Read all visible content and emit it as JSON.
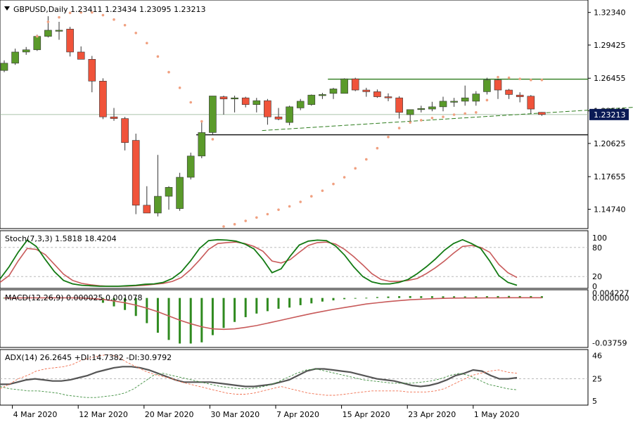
{
  "colors": {
    "bull": "#5a9a2a",
    "bear": "#f0533a",
    "sar": "#f0a080",
    "green_line": "#2e7d1e",
    "black_line": "#1a1a1a",
    "stoch_k": "#137a13",
    "stoch_d": "#c85a5a",
    "macd_hist": "#2f8a1f",
    "macd_signal": "#c85a5a",
    "adx": "#555555",
    "pdi": "#3f8f3f",
    "mdi": "#f07050",
    "current_bg": "#0a1a55",
    "current_fg": "#ffffff"
  },
  "chart_data": [
    {
      "name": "price",
      "type": "candlestick",
      "title": "GBPUSD,Daily  1.23411 1.23434 1.23095 1.23213",
      "title_menu_icon": "triangle-down-icon",
      "ylim": [
        1.132,
        1.332
      ],
      "yticks": [
        "1.32340",
        "1.29425",
        "1.26455",
        "1.23540",
        "1.20625",
        "1.17655",
        "1.14740"
      ],
      "current_price": "1.23213",
      "ohlc": [
        {
          "o": 1.2715,
          "h": 1.2805,
          "l": 1.27,
          "c": 1.278
        },
        {
          "o": 1.278,
          "h": 1.291,
          "l": 1.2765,
          "c": 1.288
        },
        {
          "o": 1.288,
          "h": 1.2925,
          "l": 1.2855,
          "c": 1.29
        },
        {
          "o": 1.29,
          "h": 1.3035,
          "l": 1.289,
          "c": 1.302
        },
        {
          "o": 1.302,
          "h": 1.32,
          "l": 1.301,
          "c": 1.3075
        },
        {
          "o": 1.3075,
          "h": 1.315,
          "l": 1.299,
          "c": 1.3075
        },
        {
          "o": 1.3085,
          "h": 1.3105,
          "l": 1.284,
          "c": 1.288
        },
        {
          "o": 1.288,
          "h": 1.293,
          "l": 1.282,
          "c": 1.2815
        },
        {
          "o": 1.2815,
          "h": 1.2845,
          "l": 1.252,
          "c": 1.262
        },
        {
          "o": 1.262,
          "h": 1.2645,
          "l": 1.228,
          "c": 1.23
        },
        {
          "o": 1.23,
          "h": 1.238,
          "l": 1.2265,
          "c": 1.2285
        },
        {
          "o": 1.2285,
          "h": 1.23,
          "l": 1.2,
          "c": 1.207
        },
        {
          "o": 1.209,
          "h": 1.215,
          "l": 1.143,
          "c": 1.151
        },
        {
          "o": 1.151,
          "h": 1.168,
          "l": 1.144,
          "c": 1.144
        },
        {
          "o": 1.144,
          "h": 1.196,
          "l": 1.141,
          "c": 1.159
        },
        {
          "o": 1.159,
          "h": 1.168,
          "l": 1.147,
          "c": 1.167
        },
        {
          "o": 1.148,
          "h": 1.18,
          "l": 1.146,
          "c": 1.176
        },
        {
          "o": 1.176,
          "h": 1.198,
          "l": 1.174,
          "c": 1.195
        },
        {
          "o": 1.195,
          "h": 1.225,
          "l": 1.193,
          "c": 1.216
        },
        {
          "o": 1.216,
          "h": 1.2487,
          "l": 1.214,
          "c": 1.2487
        },
        {
          "o": 1.248,
          "h": 1.249,
          "l": 1.232,
          "c": 1.246
        },
        {
          "o": 1.246,
          "h": 1.249,
          "l": 1.234,
          "c": 1.247
        },
        {
          "o": 1.247,
          "h": 1.248,
          "l": 1.2385,
          "c": 1.241
        },
        {
          "o": 1.241,
          "h": 1.247,
          "l": 1.234,
          "c": 1.2445
        },
        {
          "o": 1.2445,
          "h": 1.246,
          "l": 1.223,
          "c": 1.23
        },
        {
          "o": 1.23,
          "h": 1.238,
          "l": 1.227,
          "c": 1.228
        },
        {
          "o": 1.225,
          "h": 1.24,
          "l": 1.2225,
          "c": 1.239
        },
        {
          "o": 1.238,
          "h": 1.246,
          "l": 1.236,
          "c": 1.244
        },
        {
          "o": 1.241,
          "h": 1.25,
          "l": 1.24,
          "c": 1.2495
        },
        {
          "o": 1.249,
          "h": 1.2515,
          "l": 1.246,
          "c": 1.25
        },
        {
          "o": 1.251,
          "h": 1.256,
          "l": 1.246,
          "c": 1.255
        },
        {
          "o": 1.251,
          "h": 1.2645,
          "l": 1.251,
          "c": 1.264
        },
        {
          "o": 1.264,
          "h": 1.265,
          "l": 1.253,
          "c": 1.254
        },
        {
          "o": 1.254,
          "h": 1.256,
          "l": 1.248,
          "c": 1.2525
        },
        {
          "o": 1.2525,
          "h": 1.2545,
          "l": 1.247,
          "c": 1.248
        },
        {
          "o": 1.248,
          "h": 1.251,
          "l": 1.244,
          "c": 1.247
        },
        {
          "o": 1.247,
          "h": 1.2485,
          "l": 1.2285,
          "c": 1.234
        },
        {
          "o": 1.232,
          "h": 1.236,
          "l": 1.226,
          "c": 1.2365
        },
        {
          "o": 1.2365,
          "h": 1.24,
          "l": 1.234,
          "c": 1.2375
        },
        {
          "o": 1.237,
          "h": 1.2435,
          "l": 1.235,
          "c": 1.239
        },
        {
          "o": 1.239,
          "h": 1.248,
          "l": 1.235,
          "c": 1.244
        },
        {
          "o": 1.244,
          "h": 1.247,
          "l": 1.239,
          "c": 1.244
        },
        {
          "o": 1.244,
          "h": 1.258,
          "l": 1.24,
          "c": 1.247
        },
        {
          "o": 1.244,
          "h": 1.253,
          "l": 1.24,
          "c": 1.2505
        },
        {
          "o": 1.2525,
          "h": 1.265,
          "l": 1.25,
          "c": 1.263
        },
        {
          "o": 1.263,
          "h": 1.264,
          "l": 1.246,
          "c": 1.254
        },
        {
          "o": 1.254,
          "h": 1.255,
          "l": 1.246,
          "c": 1.25
        },
        {
          "o": 1.2495,
          "h": 1.252,
          "l": 1.243,
          "c": 1.248
        },
        {
          "o": 1.2485,
          "h": 1.2495,
          "l": 1.233,
          "c": 1.237
        },
        {
          "o": 1.2341,
          "h": 1.2343,
          "l": 1.2309,
          "c": 1.2321
        }
      ],
      "parabolic_sar": [
        [
          3,
          1.302
        ],
        [
          4,
          1.315
        ],
        [
          5,
          1.319
        ],
        [
          6,
          1.323
        ],
        [
          7,
          1.3234
        ],
        [
          8,
          1.3234
        ],
        [
          9,
          1.321
        ],
        [
          10,
          1.317
        ],
        [
          11,
          1.312
        ],
        [
          12,
          1.305
        ],
        [
          13,
          1.296
        ],
        [
          14,
          1.284
        ],
        [
          15,
          1.27
        ],
        [
          16,
          1.256
        ],
        [
          17,
          1.243
        ],
        [
          18,
          1.226
        ],
        [
          19,
          1.21
        ],
        [
          20,
          1.132
        ],
        [
          21,
          1.134
        ],
        [
          22,
          1.137
        ],
        [
          23,
          1.14
        ],
        [
          24,
          1.143
        ],
        [
          25,
          1.147
        ],
        [
          26,
          1.15
        ],
        [
          27,
          1.154
        ],
        [
          28,
          1.159
        ],
        [
          29,
          1.164
        ],
        [
          30,
          1.17
        ],
        [
          31,
          1.176
        ],
        [
          32,
          1.184
        ],
        [
          33,
          1.192
        ],
        [
          34,
          1.202
        ],
        [
          35,
          1.212
        ],
        [
          36,
          1.22
        ],
        [
          37,
          1.225
        ],
        [
          38,
          1.227
        ],
        [
          39,
          1.229
        ],
        [
          40,
          1.23
        ],
        [
          41,
          1.232
        ],
        [
          42,
          1.233
        ],
        [
          43,
          1.234
        ],
        [
          44,
          1.245
        ],
        [
          45,
          1.2655
        ],
        [
          46,
          1.265
        ],
        [
          47,
          1.264
        ],
        [
          48,
          1.263
        ],
        [
          49,
          1.263
        ]
      ],
      "resistance_level": 1.2637,
      "support_level": 1.214,
      "trendline": {
        "x1": 23.5,
        "y1": 1.2178,
        "x2": 60,
        "y2": 1.2405
      }
    },
    {
      "name": "stochastic",
      "type": "line",
      "title": "Stoch(7,3,3) 1.5818 18.4204",
      "ylim": [
        0,
        100
      ],
      "yticks": [
        "100",
        "80",
        "20",
        "0"
      ],
      "series": [
        {
          "name": "main",
          "values": [
            15,
            40,
            70,
            95,
            82,
            55,
            30,
            12,
            5,
            2,
            1,
            0,
            0,
            0,
            1,
            2,
            4,
            5,
            8,
            16,
            30,
            52,
            78,
            94,
            96,
            95,
            93,
            87,
            77,
            55,
            28,
            36,
            62,
            85,
            93,
            95,
            94,
            83,
            64,
            40,
            20,
            9,
            5,
            5,
            8,
            14,
            26,
            40,
            56,
            74,
            88,
            96,
            88,
            78,
            52,
            22,
            8,
            2
          ]
        },
        {
          "name": "signal",
          "values": [
            8,
            22,
            52,
            78,
            76,
            65,
            45,
            25,
            12,
            6,
            3,
            1,
            0,
            0,
            0,
            1,
            2,
            4,
            6,
            10,
            18,
            34,
            54,
            76,
            88,
            90,
            91,
            88,
            82,
            72,
            52,
            48,
            55,
            70,
            84,
            90,
            91,
            87,
            76,
            61,
            44,
            26,
            14,
            10,
            10,
            12,
            16,
            26,
            38,
            52,
            68,
            82,
            84,
            80,
            70,
            45,
            28,
            18
          ]
        }
      ]
    },
    {
      "name": "macd",
      "type": "bar",
      "title": "MACD(12,26,9) 0.000025 0.001078",
      "ylim": [
        -0.0395,
        0.0045
      ],
      "yticks": [
        "0.004227",
        "0.000000",
        "-0.03759"
      ],
      "histogram": [
        0.0002,
        0.0002,
        0.0002,
        0.0003,
        0.0002,
        0.0003,
        0.0003,
        0.0001,
        -0.001,
        -0.004,
        -0.007,
        -0.01,
        -0.015,
        -0.021,
        -0.029,
        -0.035,
        -0.038,
        -0.038,
        -0.037,
        -0.031,
        -0.025,
        -0.02,
        -0.016,
        -0.013,
        -0.011,
        -0.009,
        -0.008,
        -0.006,
        -0.0045,
        -0.003,
        -0.002,
        -0.001,
        -0.0005,
        0.0002,
        0.0008,
        0.0012,
        0.0015,
        0.0016,
        0.0015,
        0.0015,
        0.0014,
        0.0014,
        0.0013,
        0.0014,
        0.0015,
        0.0016,
        0.0017,
        0.0016,
        0.0016,
        0.0015
      ],
      "signal": [
        0.0,
        0.0,
        0.0001,
        0.0001,
        0.0001,
        0.0001,
        0.0001,
        0.0,
        -0.0004,
        -0.0012,
        -0.0025,
        -0.004,
        -0.006,
        -0.0085,
        -0.0115,
        -0.015,
        -0.0185,
        -0.0215,
        -0.024,
        -0.0258,
        -0.0262,
        -0.0258,
        -0.0245,
        -0.023,
        -0.021,
        -0.019,
        -0.017,
        -0.015,
        -0.013,
        -0.0112,
        -0.0095,
        -0.008,
        -0.0065,
        -0.005,
        -0.004,
        -0.003,
        -0.0022,
        -0.0015,
        -0.001,
        -0.0006,
        -0.0003,
        -0.0001,
        0.0,
        0.0,
        0.0001,
        0.0001,
        0.0002,
        0.0002,
        0.0002,
        0.0002
      ]
    },
    {
      "name": "adx",
      "type": "line",
      "title": "ADX(14) 26.2645 +DI:14.7382 -DI:30.9792",
      "ylim": [
        3,
        49
      ],
      "yticks": [
        "46",
        "25",
        "5"
      ],
      "level": 25,
      "series": [
        {
          "name": "ADX",
          "values": [
            20,
            20,
            22,
            24,
            25,
            24,
            23,
            23,
            24,
            26,
            28,
            31,
            33,
            35,
            36,
            36,
            35,
            33,
            30,
            27,
            24,
            22,
            22,
            22,
            22,
            21,
            20,
            19,
            18,
            18,
            19,
            20,
            22,
            24,
            28,
            32,
            34,
            34,
            33,
            32,
            31,
            29,
            27,
            25,
            24,
            23,
            21,
            19,
            18,
            19,
            21,
            24,
            28,
            30,
            33,
            32,
            28,
            25,
            25,
            26
          ]
        },
        {
          "name": "+DI",
          "values": [
            18,
            16,
            15,
            14,
            14,
            13,
            12,
            10,
            9,
            8,
            8,
            9,
            10,
            12,
            16,
            22,
            28,
            30,
            28,
            26,
            24,
            22,
            20,
            18,
            17,
            16,
            16,
            17,
            19,
            22,
            26,
            30,
            33,
            34,
            32,
            30,
            28,
            26,
            24,
            23,
            22,
            21,
            21,
            21,
            22,
            23,
            25,
            28,
            30,
            28,
            24,
            20,
            18,
            16,
            15
          ]
        },
        {
          "name": "-DI",
          "values": [
            16,
            20,
            25,
            28,
            32,
            34,
            35,
            36,
            38,
            42,
            44,
            46,
            47,
            45,
            40,
            36,
            32,
            29,
            27,
            25,
            22,
            20,
            18,
            16,
            14,
            12,
            11,
            11,
            12,
            14,
            16,
            18,
            16,
            14,
            12,
            11,
            10,
            10,
            11,
            12,
            13,
            14,
            14,
            14,
            14,
            13,
            13,
            13,
            14,
            16,
            20,
            24,
            28,
            30,
            32,
            33,
            31,
            30
          ]
        }
      ]
    }
  ],
  "x_axis": {
    "labels": [
      {
        "text": "4 Mar 2020",
        "index": 1
      },
      {
        "text": "12 Mar 2020",
        "index": 7
      },
      {
        "text": "20 Mar 2020",
        "index": 13
      },
      {
        "text": "30 Mar 2020",
        "index": 19
      },
      {
        "text": "7 Apr 2020",
        "index": 25
      },
      {
        "text": "15 Apr 2020",
        "index": 31
      },
      {
        "text": "23 Apr 2020",
        "index": 37
      },
      {
        "text": "1 May 2020",
        "index": 43
      }
    ]
  }
}
